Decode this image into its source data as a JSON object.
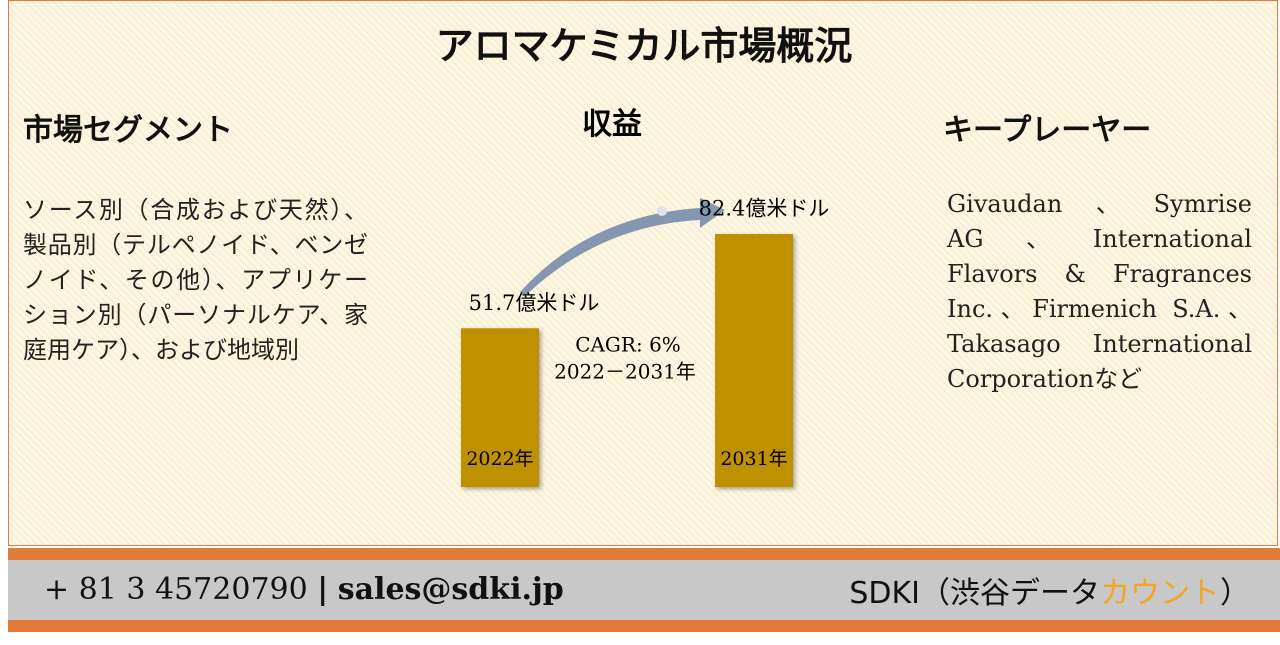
{
  "header": {
    "title": "アロマケミカル市場概況"
  },
  "segments": {
    "heading": "市場セグメント",
    "text": "ソース別（合成および天然）、製品別（テルペノイド、ベンゼノイド、その他）、アプリケーション別（パーソナルケア、家庭用ケア）、および地域別"
  },
  "chart_data": {
    "type": "bar",
    "title": "収益",
    "categories": [
      "2022年",
      "2031年"
    ],
    "values": [
      51.7,
      82.4
    ],
    "value_labels": [
      "51.7億米ドル",
      "82.4億米ドル"
    ],
    "color": "#bf9000",
    "annotations": [
      "CAGR: 6%",
      "2022－2031年"
    ]
  },
  "players": {
    "heading": "キープレーヤー",
    "text": "Givaudan、Symrise AG、International Flavors & Fragrances Inc.、Firmenich S.A.、Takasago International Corporationなど"
  },
  "footer": {
    "phone": "+ 81 3 45720790",
    "separator": "|",
    "email": "sales@sdki.jp",
    "company": "SDKI（渋谷データ",
    "company_highlight": "カウント",
    "company_end": "）"
  }
}
